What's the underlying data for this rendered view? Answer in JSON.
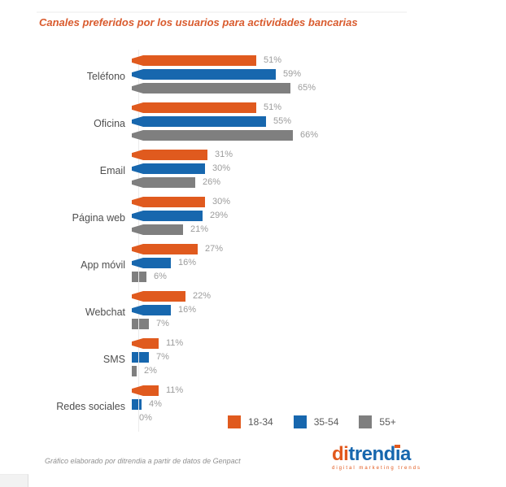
{
  "title": "Canales preferidos por los usuarios para actividades bancarias",
  "chart_data": {
    "type": "bar",
    "orientation": "horizontal",
    "title": "Canales preferidos por los usuarios para actividades bancarias",
    "categories": [
      "Teléfono",
      "Oficina",
      "Email",
      "Página web",
      "App móvil",
      "Webchat",
      "SMS",
      "Redes sociales"
    ],
    "series": [
      {
        "name": "18-34",
        "color": "#e05a1e",
        "values": [
          51,
          51,
          31,
          30,
          27,
          22,
          11,
          11
        ]
      },
      {
        "name": "35-54",
        "color": "#1767ae",
        "values": [
          59,
          55,
          30,
          29,
          16,
          16,
          7,
          4
        ]
      },
      {
        "name": "55+",
        "color": "#7f7f7f",
        "values": [
          65,
          66,
          26,
          21,
          6,
          7,
          2,
          0
        ]
      }
    ],
    "value_suffix": "%",
    "data_labels": true,
    "xlim": [
      0,
      70
    ],
    "grid": false,
    "legend_position": "bottom-right"
  },
  "legend": {
    "items": [
      {
        "label": "18-34",
        "color": "#e05a1e"
      },
      {
        "label": "35-54",
        "color": "#1767ae"
      },
      {
        "label": "55+",
        "color": "#7f7f7f"
      }
    ]
  },
  "footer": {
    "note": "Gráfico elaborado por ditrendia a partir de datos de Genpact"
  },
  "logo": {
    "p1": "di",
    "p2": "trend",
    "p3": "i",
    "p4": "a",
    "tagline": "digital marketing trends"
  },
  "colors": {
    "title": "#d95b2e",
    "value_label": "#9c9c9c",
    "category_label": "#4f4f4f",
    "axis_line": "#ececec"
  }
}
